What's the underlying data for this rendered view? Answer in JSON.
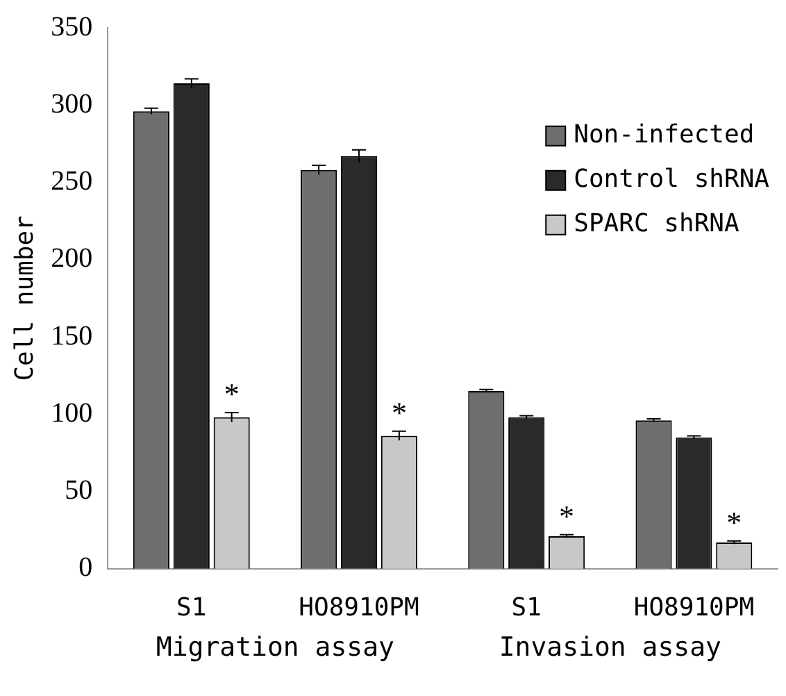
{
  "chart_data": {
    "type": "bar",
    "ylabel": "Cell number",
    "categories": [
      "S1",
      "HO8910PM",
      "S1",
      "HO8910PM"
    ],
    "series": [
      {
        "name": "Non-infected",
        "color": "#6e6e6e",
        "values": [
          296,
          258,
          115,
          96
        ],
        "errors": [
          2,
          3,
          1,
          1
        ]
      },
      {
        "name": "Control shRNA",
        "color": "#2a2a2a",
        "values": [
          314,
          267,
          98,
          85
        ],
        "errors": [
          3,
          4,
          1,
          1
        ]
      },
      {
        "name": "SPARC shRNA",
        "color": "#c8c8c8",
        "values": [
          98,
          86,
          21,
          17
        ],
        "errors": [
          3,
          3,
          1,
          1
        ],
        "value_labels": [
          "*",
          "*",
          "*",
          "*"
        ]
      }
    ],
    "ylim": [
      0,
      350
    ],
    "yticks": [
      0,
      50,
      100,
      150,
      200,
      250,
      300,
      350
    ],
    "grid": false,
    "legend": "right",
    "annotations": [
      "Migration assay",
      "Invasion assay"
    ]
  }
}
